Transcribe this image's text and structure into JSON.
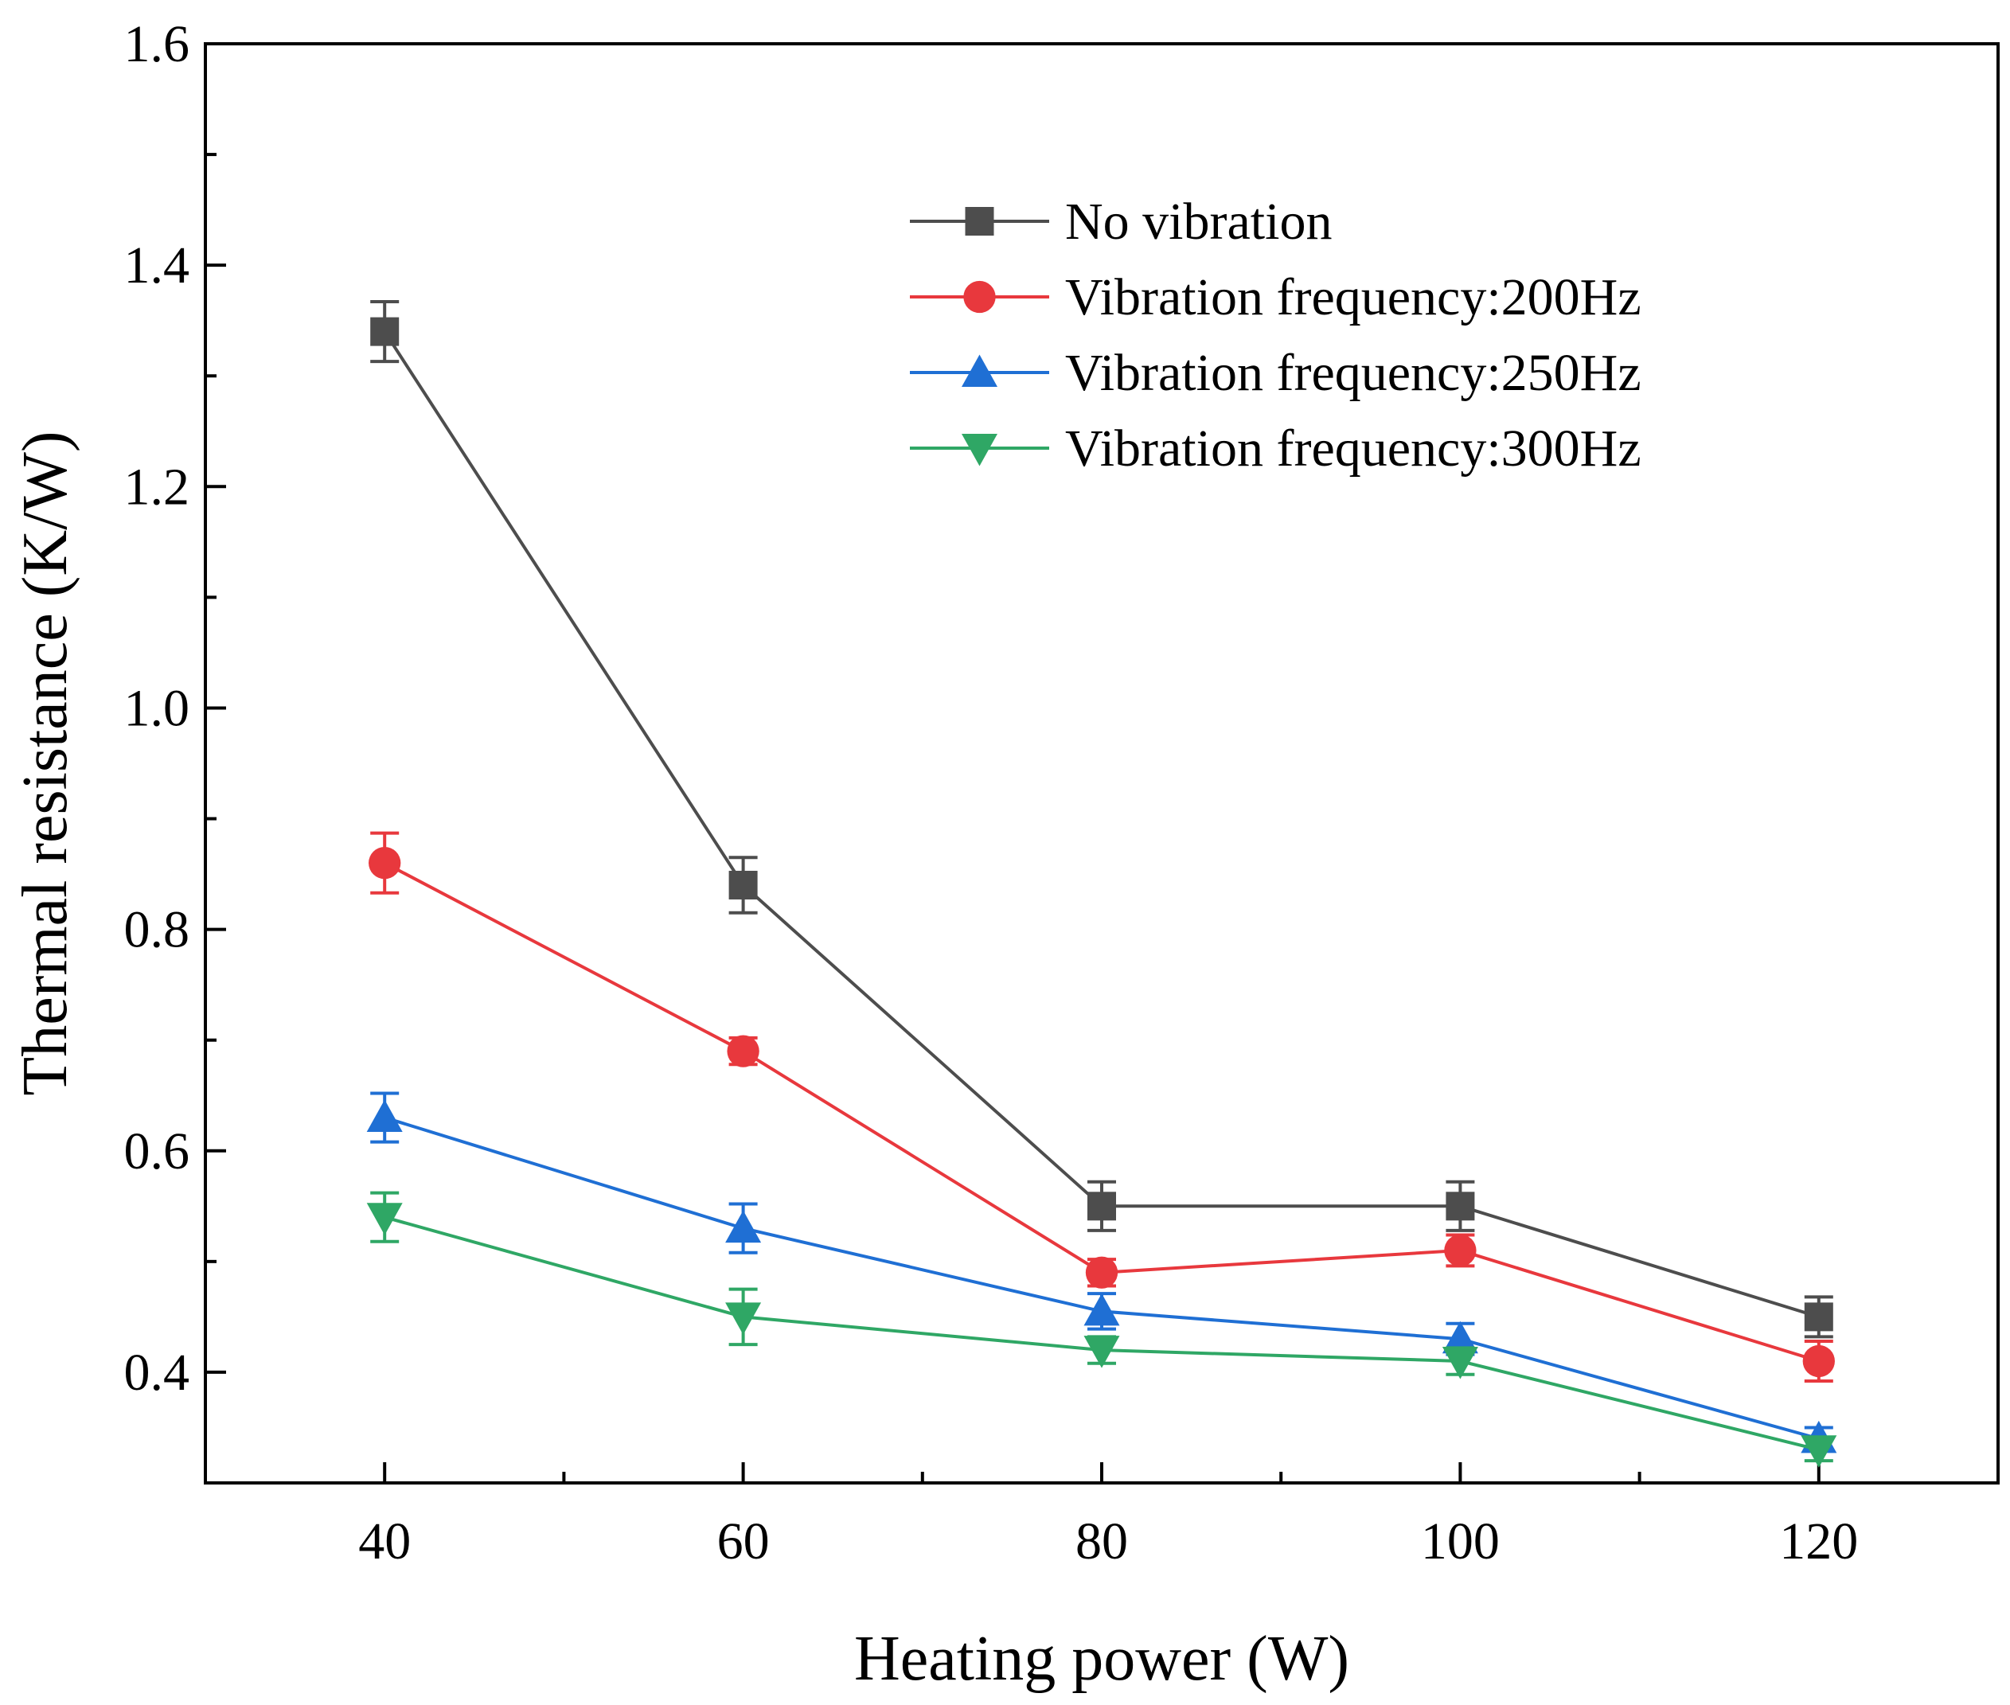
{
  "chart_data": {
    "type": "line",
    "title": "",
    "xlabel": "Heating power (W)",
    "ylabel": "Thermal resistance (K/W)",
    "xlim": [
      30,
      130
    ],
    "ylim": [
      0.3,
      1.6
    ],
    "x": [
      40,
      60,
      80,
      100,
      120
    ],
    "x_ticks": [
      40,
      60,
      80,
      100,
      120
    ],
    "x_tick_labels": [
      "40",
      "60",
      "80",
      "100",
      "120"
    ],
    "y_ticks": [
      0.4,
      0.6,
      0.8,
      1.0,
      1.2,
      1.4,
      1.6
    ],
    "y_tick_labels": [
      "0.4",
      "0.6",
      "0.8",
      "1.0",
      "1.2",
      "1.4",
      "1.6"
    ],
    "legend_position": "top-right",
    "grid": false,
    "series": [
      {
        "name": "No vibration",
        "color": "#4d4d4d",
        "marker": "square",
        "values": [
          1.34,
          0.84,
          0.55,
          0.55,
          0.45
        ],
        "errors": [
          0.027,
          0.025,
          0.022,
          0.022,
          0.018
        ]
      },
      {
        "name": "Vibration frequency:200Hz",
        "color": "#e8383d",
        "marker": "circle",
        "values": [
          0.86,
          0.69,
          0.49,
          0.51,
          0.41
        ],
        "errors": [
          0.027,
          0.012,
          0.012,
          0.014,
          0.018
        ]
      },
      {
        "name": "Vibration frequency:250Hz",
        "color": "#1f6fd4",
        "marker": "triangle-up",
        "values": [
          0.63,
          0.53,
          0.455,
          0.43,
          0.34
        ],
        "errors": [
          0.022,
          0.022,
          0.016,
          0.014,
          0.01
        ]
      },
      {
        "name": "Vibration frequency:300Hz",
        "color": "#2fa765",
        "marker": "triangle-down",
        "values": [
          0.54,
          0.45,
          0.42,
          0.41,
          0.33
        ],
        "errors": [
          0.022,
          0.025,
          0.012,
          0.012,
          0.01
        ]
      }
    ]
  }
}
